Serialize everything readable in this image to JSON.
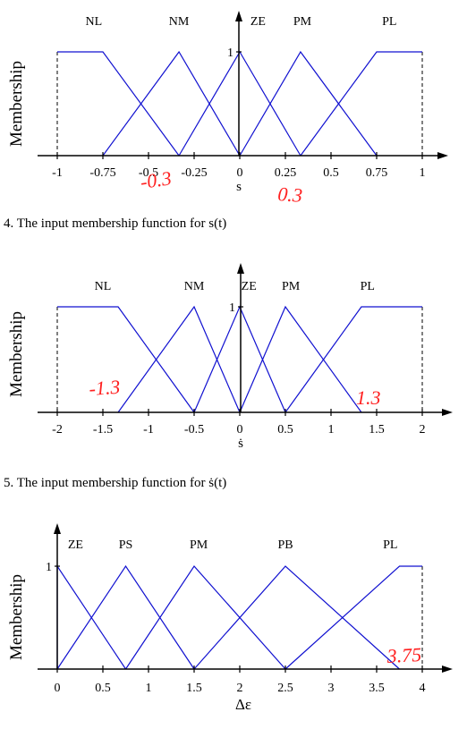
{
  "colors": {
    "mf": "#1010d0",
    "annotation": "#ff2020",
    "axis": "#000000"
  },
  "captions": [
    "4. The input membership function for s(t)",
    "5. The input membership function for ṡ(t)"
  ],
  "chart_data": [
    {
      "type": "line",
      "ylabel": "Membership",
      "xlabel": "s",
      "ylim": [
        0,
        1
      ],
      "y_tick": "1",
      "x_ticks": [
        -1,
        -0.75,
        -0.5,
        -0.25,
        0,
        0.25,
        0.5,
        0.75,
        1
      ],
      "x_tick_labels": [
        "-1",
        "-0.75",
        "-0.5",
        "-0.25",
        "0",
        "0.25",
        "0.5",
        "0.75",
        "1"
      ],
      "series": [
        {
          "name": "NL",
          "x": [
            -1,
            -0.75,
            -0.333
          ],
          "y": [
            1,
            1,
            0
          ]
        },
        {
          "name": "NM",
          "x": [
            -0.75,
            -0.333,
            0
          ],
          "y": [
            0,
            1,
            0
          ]
        },
        {
          "name": "ZE",
          "x": [
            -0.333,
            0,
            0.333
          ],
          "y": [
            0,
            1,
            0
          ]
        },
        {
          "name": "PM",
          "x": [
            0,
            0.333,
            0.75
          ],
          "y": [
            0,
            1,
            0
          ]
        },
        {
          "name": "PL",
          "x": [
            0.333,
            0.75,
            1
          ],
          "y": [
            0,
            1,
            1
          ]
        }
      ],
      "dashed_x": [
        -1,
        1
      ],
      "annotations": [
        "-0.3",
        "0.3"
      ]
    },
    {
      "type": "line",
      "ylabel": "Membership",
      "xlabel": "ṡ",
      "ylim": [
        0,
        1
      ],
      "y_tick": "1",
      "x_ticks": [
        -2,
        -1.5,
        -1,
        -0.5,
        0,
        0.5,
        1,
        1.5,
        2
      ],
      "x_tick_labels": [
        "-2",
        "-1.5",
        "-1",
        "-0.5",
        "0",
        "0.5",
        "1",
        "1.5",
        "2"
      ],
      "series": [
        {
          "name": "NL",
          "x": [
            -2,
            -1.333,
            -0.5
          ],
          "y": [
            1,
            1,
            0
          ]
        },
        {
          "name": "NM",
          "x": [
            -1.333,
            -0.5,
            0
          ],
          "y": [
            0,
            1,
            0
          ]
        },
        {
          "name": "ZE",
          "x": [
            -0.5,
            0,
            0.5
          ],
          "y": [
            0,
            1,
            0
          ]
        },
        {
          "name": "PM",
          "x": [
            0,
            0.5,
            1.333
          ],
          "y": [
            0,
            1,
            0
          ]
        },
        {
          "name": "PL",
          "x": [
            0.5,
            1.333,
            2
          ],
          "y": [
            0,
            1,
            1
          ]
        }
      ],
      "dashed_x": [
        -2,
        2
      ],
      "annotations": [
        "-1.3",
        "1.3"
      ]
    },
    {
      "type": "line",
      "ylabel": "Membership",
      "xlabel": "Δε",
      "ylim": [
        0,
        1
      ],
      "y_tick": "1",
      "x_ticks": [
        0,
        0.5,
        1,
        1.5,
        2,
        2.5,
        3,
        3.5,
        4
      ],
      "x_tick_labels": [
        "0",
        "0.5",
        "1",
        "1.5",
        "2",
        "2.5",
        "3",
        "3.5",
        "4"
      ],
      "series": [
        {
          "name": "ZE",
          "x": [
            0,
            0,
            0.75
          ],
          "y": [
            0,
            1,
            0
          ]
        },
        {
          "name": "PS",
          "x": [
            0,
            0.75,
            1.5
          ],
          "y": [
            0,
            1,
            0
          ]
        },
        {
          "name": "PM",
          "x": [
            0.75,
            1.5,
            2.5
          ],
          "y": [
            0,
            1,
            0
          ]
        },
        {
          "name": "PB",
          "x": [
            1.5,
            2.5,
            3.75
          ],
          "y": [
            0,
            1,
            0
          ]
        },
        {
          "name": "PL",
          "x": [
            2.5,
            3.75,
            4
          ],
          "y": [
            0,
            1,
            1
          ]
        }
      ],
      "dashed_x": [
        4
      ],
      "annotations": [
        "3.75"
      ]
    }
  ]
}
